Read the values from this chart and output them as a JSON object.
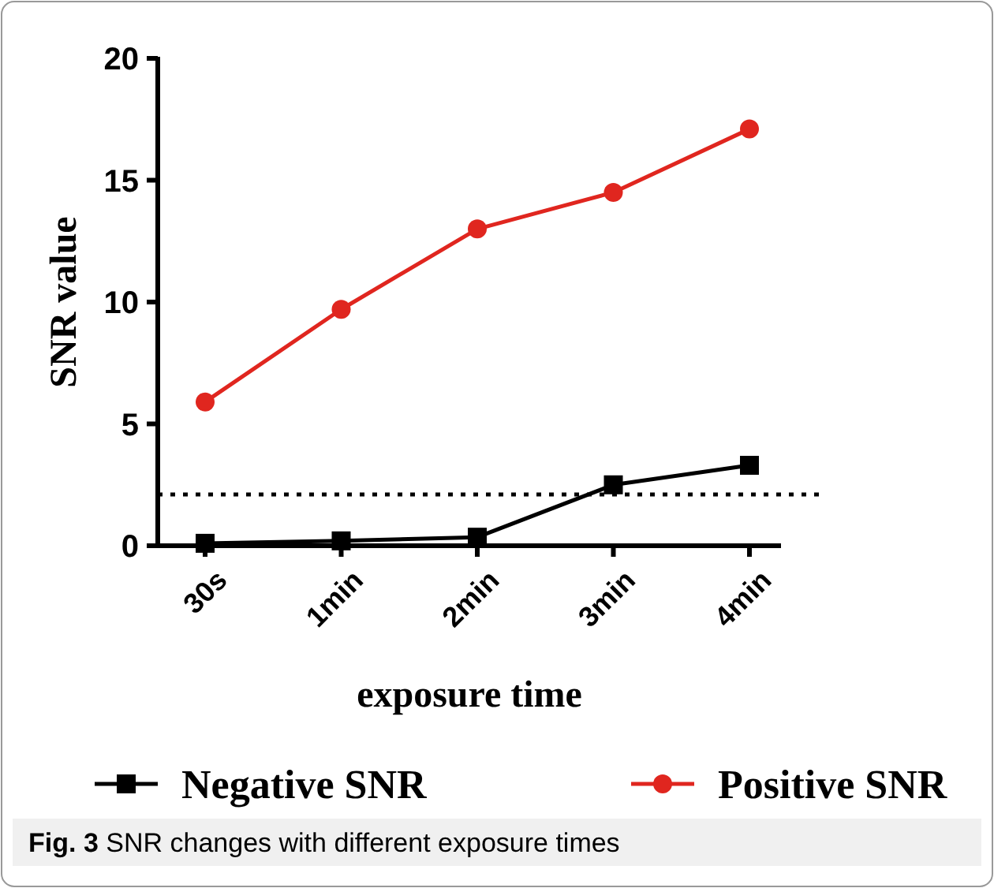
{
  "chart_data": {
    "type": "line",
    "xlabel": "exposure time",
    "ylabel": "SNR value",
    "categories": [
      "30s",
      "1min",
      "2min",
      "3min",
      "4min"
    ],
    "ylim": [
      0,
      20
    ],
    "yticks": [
      0,
      5,
      10,
      15,
      20
    ],
    "grid": false,
    "legend": "bottom",
    "series": [
      {
        "name": "Negative SNR",
        "color": "#000000",
        "marker": "square",
        "values": [
          0.1,
          0.2,
          0.35,
          2.5,
          3.3
        ]
      },
      {
        "name": "Positive SNR",
        "color": "#e0261f",
        "marker": "circle",
        "values": [
          5.9,
          9.7,
          13.0,
          14.5,
          17.1
        ]
      }
    ],
    "ref_lines": [
      {
        "axis": "y",
        "value": 2.1,
        "line_style": "dotted"
      }
    ],
    "annotations": [
      "Fig. 3 SNR changes with different exposure times"
    ]
  }
}
